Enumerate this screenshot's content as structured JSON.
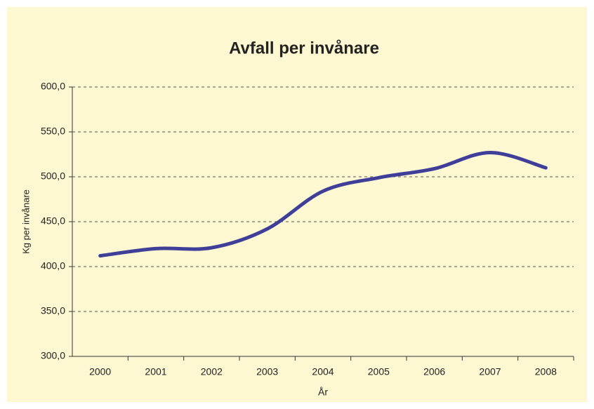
{
  "chart_data": {
    "type": "line",
    "title": "Avfall per invånare",
    "x_label": "År",
    "y_label": "Kg per invånare",
    "categories": [
      "2000",
      "2001",
      "2002",
      "2003",
      "2004",
      "2005",
      "2006",
      "2007",
      "2008"
    ],
    "series": [
      {
        "name": "Avfall per invånare",
        "color": "#3f3f9a",
        "values": [
          412,
          420,
          421,
          442,
          484,
          499,
          509,
          527,
          510
        ]
      }
    ],
    "ylim": [
      300,
      600
    ],
    "yticks": [
      {
        "value": 300,
        "label": "300,0"
      },
      {
        "value": 350,
        "label": "350,0"
      },
      {
        "value": 400,
        "label": "400,0"
      },
      {
        "value": 450,
        "label": "450,0"
      },
      {
        "value": 500,
        "label": "500,0"
      },
      {
        "value": 550,
        "label": "550,0"
      },
      {
        "value": 600,
        "label": "600,0"
      }
    ],
    "grid": true
  }
}
